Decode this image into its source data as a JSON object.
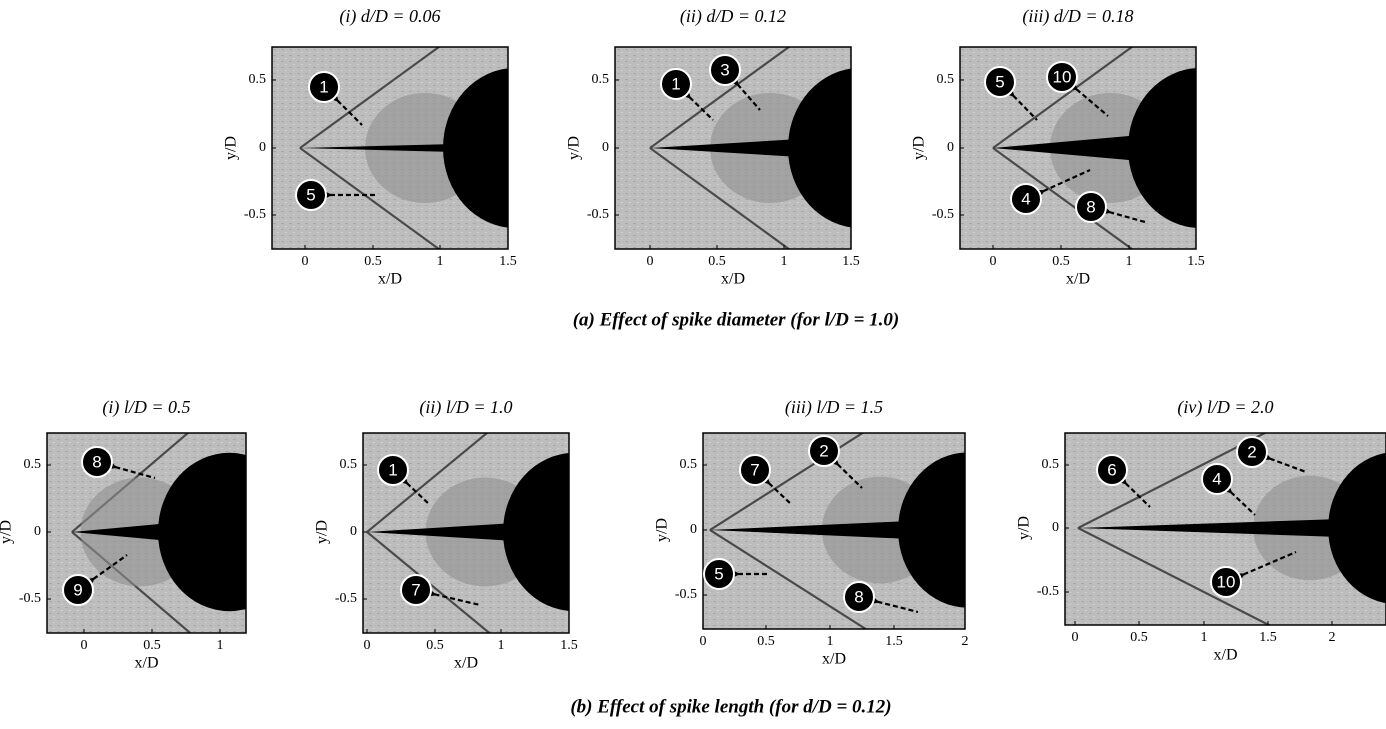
{
  "rows": [
    {
      "caption": "(a) Effect of spike diameter (for l/D = 1.0)",
      "panels": [
        {
          "title": "(i) d/D = 0.06",
          "xlabel": "x/D",
          "ylabel": "y/D",
          "xticks": [
            "0",
            "0.5",
            "1",
            "1.5"
          ],
          "yticks": [
            "0.5",
            "0",
            "-0.5"
          ],
          "markers": [
            "1",
            "5"
          ]
        },
        {
          "title": "(ii) d/D = 0.12",
          "xlabel": "x/D",
          "ylabel": "y/D",
          "xticks": [
            "0",
            "0.5",
            "1",
            "1.5"
          ],
          "yticks": [
            "0.5",
            "0",
            "-0.5"
          ],
          "markers": [
            "1",
            "3"
          ]
        },
        {
          "title": "(iii) d/D = 0.18",
          "xlabel": "x/D",
          "ylabel": "y/D",
          "xticks": [
            "0",
            "0.5",
            "1",
            "1.5"
          ],
          "yticks": [
            "0.5",
            "0",
            "-0.5"
          ],
          "markers": [
            "5",
            "10",
            "4",
            "8"
          ]
        }
      ]
    },
    {
      "caption": "(b) Effect of spike length (for d/D = 0.12)",
      "panels": [
        {
          "title": "(i) l/D = 0.5",
          "xlabel": "x/D",
          "ylabel": "y/D",
          "xticks": [
            "0",
            "0.5",
            "1"
          ],
          "yticks": [
            "0.5",
            "0",
            "-0.5"
          ],
          "markers": [
            "8",
            "9"
          ]
        },
        {
          "title": "(ii) l/D = 1.0",
          "xlabel": "x/D",
          "ylabel": "y/D",
          "xticks": [
            "0",
            "0.5",
            "1",
            "1.5"
          ],
          "yticks": [
            "0.5",
            "0",
            "-0.5"
          ],
          "markers": [
            "1",
            "7"
          ]
        },
        {
          "title": "(iii) l/D = 1.5",
          "xlabel": "x/D",
          "ylabel": "y/D",
          "xticks": [
            "0",
            "0.5",
            "1",
            "1.5",
            "2"
          ],
          "yticks": [
            "0.5",
            "0",
            "-0.5"
          ],
          "markers": [
            "7",
            "2",
            "5",
            "8"
          ]
        },
        {
          "title": "(iv) l/D = 2.0",
          "xlabel": "x/D",
          "ylabel": "y/D",
          "xticks": [
            "0",
            "0.5",
            "1",
            "1.5",
            "2"
          ],
          "yticks": [
            "0.5",
            "0",
            "-0.5"
          ],
          "markers": [
            "6",
            "2",
            "4",
            "10"
          ]
        }
      ]
    }
  ]
}
